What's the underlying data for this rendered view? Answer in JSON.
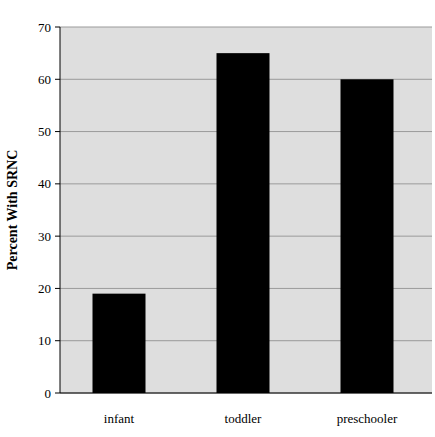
{
  "chart_data": {
    "type": "bar",
    "y_label": "Percent With SRNC",
    "categories": [
      "infant",
      "toddler",
      "preschooler"
    ],
    "values": [
      19,
      65,
      60
    ],
    "color": "#000000",
    "ylim": [
      0,
      70
    ],
    "yticks": [
      0,
      10,
      20,
      30,
      40,
      50,
      60,
      70
    ],
    "grid": true
  }
}
